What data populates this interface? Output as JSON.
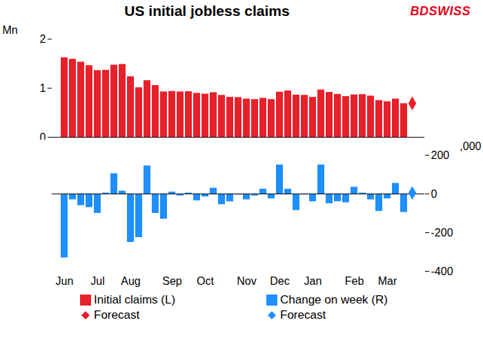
{
  "chart_data": [
    {
      "type": "bar",
      "title": "US initial jobless claims",
      "annotations": [
        "BDSWISS"
      ],
      "legend": "bottom",
      "ylabel": "Mn",
      "ylim": [
        0,
        2
      ],
      "yticks": [
        0,
        1,
        2
      ],
      "categories": [
        "Jun",
        null,
        null,
        null,
        "Jul",
        null,
        null,
        null,
        "Aug",
        null,
        null,
        null,
        null,
        "Sep",
        null,
        null,
        null,
        "Oct",
        null,
        null,
        null,
        null,
        "Nov",
        null,
        null,
        null,
        "Dec",
        null,
        null,
        null,
        "Jan",
        null,
        null,
        null,
        null,
        "Feb",
        null,
        null,
        null,
        "Mar",
        null,
        null,
        null
      ],
      "series": [
        {
          "name": "Initial claims (L)",
          "color": "#e8202a",
          "type": "bar",
          "values": [
            1.62,
            1.59,
            1.53,
            1.46,
            1.36,
            1.365,
            1.47,
            1.485,
            1.235,
            1.01,
            1.155,
            1.055,
            0.925,
            0.935,
            0.925,
            0.93,
            0.895,
            0.88,
            0.91,
            0.855,
            0.815,
            0.81,
            0.78,
            0.77,
            0.795,
            0.77,
            0.92,
            0.945,
            0.86,
            0.855,
            0.815,
            0.965,
            0.915,
            0.875,
            0.83,
            0.865,
            0.87,
            0.84,
            0.75,
            0.725,
            0.78,
            0.685,
            null
          ]
        },
        {
          "name": "Forecast",
          "color": "#e8202a",
          "type": "scatter",
          "marker": "diamond",
          "values": [
            null,
            null,
            null,
            null,
            null,
            null,
            null,
            null,
            null,
            null,
            null,
            null,
            null,
            null,
            null,
            null,
            null,
            null,
            null,
            null,
            null,
            null,
            null,
            null,
            null,
            null,
            null,
            null,
            null,
            null,
            null,
            null,
            null,
            null,
            null,
            null,
            null,
            null,
            null,
            null,
            null,
            null,
            0.69
          ]
        }
      ]
    },
    {
      "type": "bar",
      "legend": "bottom",
      "ylabel": ",000",
      "ylim": [
        -400,
        200
      ],
      "yticks": [
        -400,
        -200,
        0,
        200
      ],
      "categories": [
        "Jun",
        null,
        null,
        null,
        "Jul",
        null,
        null,
        null,
        "Aug",
        null,
        null,
        null,
        null,
        "Sep",
        null,
        null,
        null,
        "Oct",
        null,
        null,
        null,
        null,
        "Nov",
        null,
        null,
        null,
        "Dec",
        null,
        null,
        null,
        "Jan",
        null,
        null,
        null,
        null,
        "Feb",
        null,
        null,
        null,
        "Mar",
        null,
        null,
        null
      ],
      "series": [
        {
          "name": "Change on week (R)",
          "color": "#1e8fff",
          "type": "bar",
          "values": [
            -330,
            -30,
            -60,
            -70,
            -100,
            5,
            105,
            15,
            -250,
            -225,
            145,
            -100,
            -130,
            10,
            -10,
            5,
            -35,
            -15,
            30,
            -55,
            -40,
            -5,
            -30,
            -10,
            25,
            -25,
            150,
            25,
            -85,
            -5,
            -40,
            150,
            -50,
            -40,
            -45,
            35,
            5,
            -30,
            -90,
            -25,
            55,
            -95,
            null
          ]
        },
        {
          "name": "Forecast",
          "color": "#1e8fff",
          "type": "scatter",
          "marker": "diamond",
          "values": [
            null,
            null,
            null,
            null,
            null,
            null,
            null,
            null,
            null,
            null,
            null,
            null,
            null,
            null,
            null,
            null,
            null,
            null,
            null,
            null,
            null,
            null,
            null,
            null,
            null,
            null,
            null,
            null,
            null,
            null,
            null,
            null,
            null,
            null,
            null,
            null,
            null,
            null,
            null,
            null,
            null,
            null,
            5
          ]
        }
      ]
    }
  ]
}
